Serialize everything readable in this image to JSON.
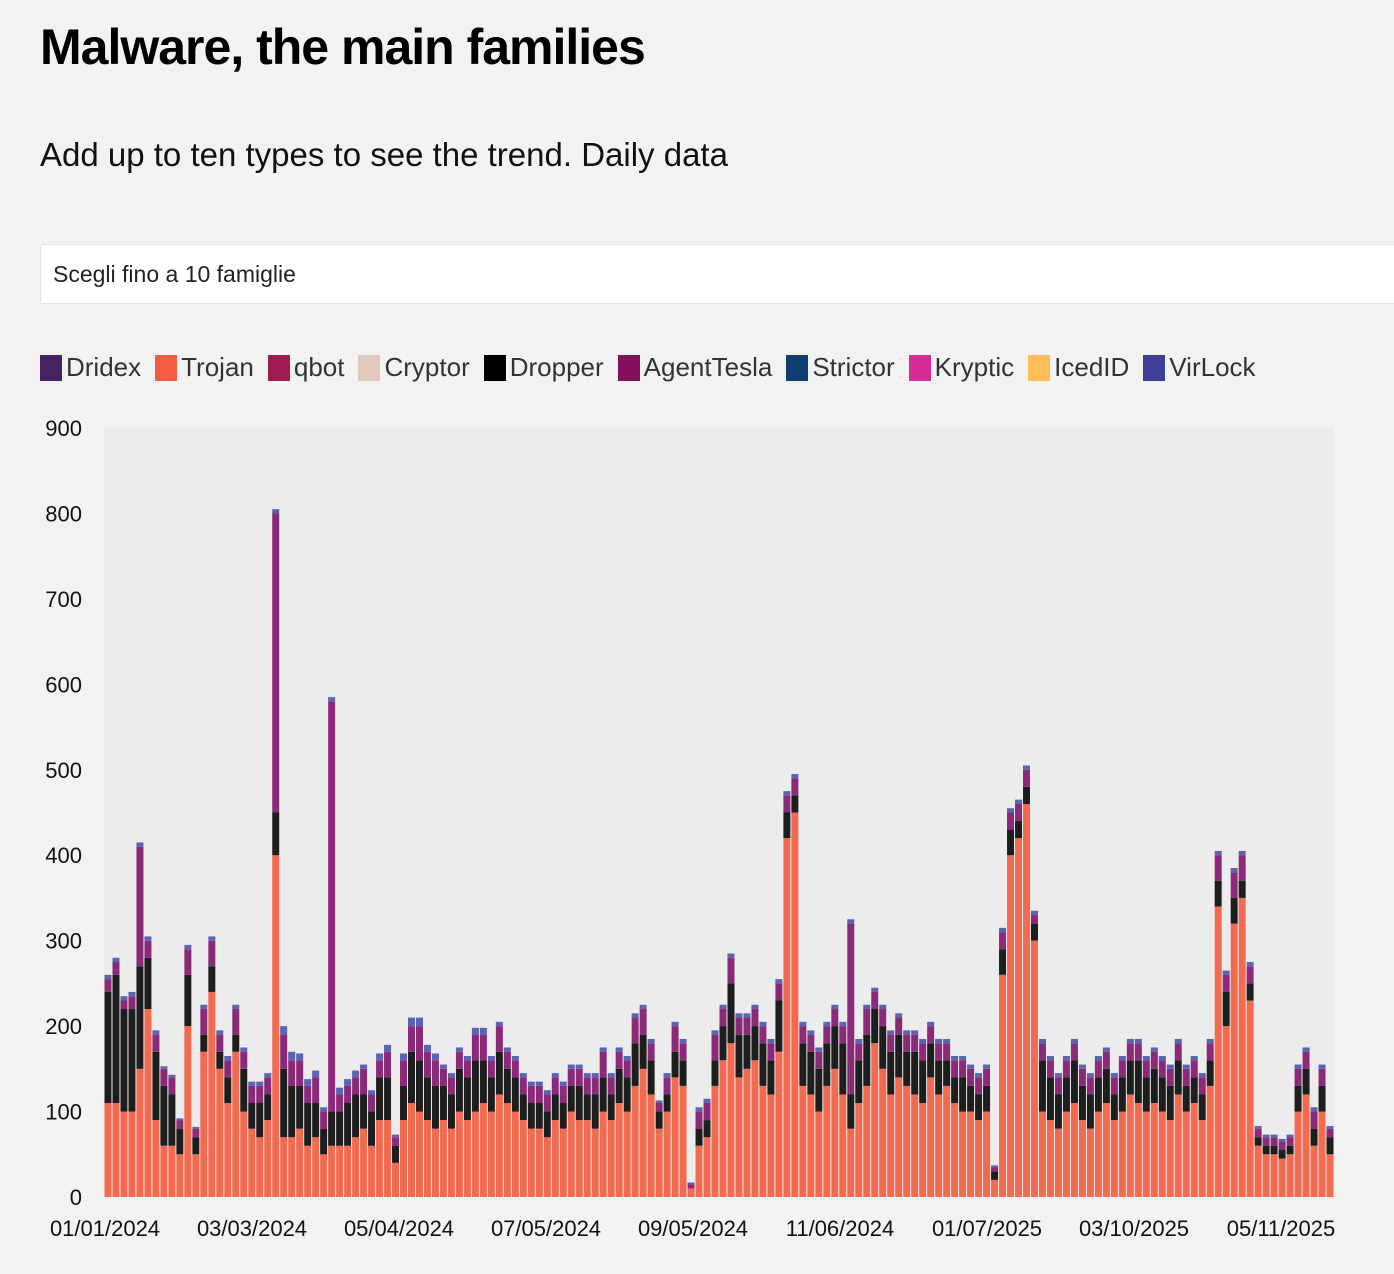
{
  "header": {
    "title": "Malware, the main families",
    "subtitle": "Add up to ten types to see the trend. Daily data"
  },
  "selector": {
    "placeholder": "Scegli fino a 10 famiglie"
  },
  "legend": [
    {
      "name": "Dridex",
      "color": "#45245f"
    },
    {
      "name": "Trojan",
      "color": "#f45d44"
    },
    {
      "name": "qbot",
      "color": "#9e1c50"
    },
    {
      "name": "Cryptor",
      "color": "#e0c8bd"
    },
    {
      "name": "Dropper",
      "color": "#000000"
    },
    {
      "name": "AgentTesla",
      "color": "#82105e"
    },
    {
      "name": "Strictor",
      "color": "#0e3f6e"
    },
    {
      "name": "Kryptic",
      "color": "#d42a93"
    },
    {
      "name": "IcedID",
      "color": "#fdbd57"
    },
    {
      "name": "VirLock",
      "color": "#3f3f98"
    }
  ],
  "chart_data": {
    "type": "bar",
    "stacked": true,
    "title": "",
    "xlabel": "",
    "ylabel": "",
    "ylim": [
      0,
      900
    ],
    "yticks": [
      0,
      100,
      200,
      300,
      400,
      500,
      600,
      700,
      800,
      900
    ],
    "xticks": [
      "01/01/2024",
      "03/03/2024",
      "05/04/2024",
      "07/05/2024",
      "09/05/2024",
      "11/06/2024",
      "01/07/2025",
      "03/10/2025",
      "05/11/2025"
    ],
    "grid": false,
    "legend_position": "top-left",
    "series": [
      {
        "name": "Trojan",
        "color": "#f26b50",
        "values": [
          110,
          110,
          100,
          100,
          150,
          220,
          90,
          60,
          60,
          50,
          200,
          50,
          170,
          240,
          150,
          110,
          170,
          100,
          80,
          70,
          90,
          400,
          70,
          70,
          80,
          60,
          70,
          50,
          60,
          60,
          60,
          70,
          80,
          60,
          90,
          90,
          40,
          90,
          110,
          100,
          90,
          80,
          90,
          80,
          100,
          90,
          100,
          110,
          100,
          120,
          110,
          100,
          90,
          80,
          80,
          70,
          90,
          80,
          100,
          90,
          90,
          80,
          100,
          90,
          110,
          100,
          130,
          150,
          120,
          80,
          100,
          140,
          130,
          10,
          60,
          70,
          130,
          160,
          180,
          140,
          150,
          160,
          130,
          120,
          170,
          420,
          450,
          130,
          120,
          100,
          130,
          150,
          120,
          80,
          110,
          130,
          180,
          150,
          120,
          140,
          130,
          120,
          110,
          140,
          120,
          130,
          110,
          100,
          100,
          90,
          100,
          20,
          260,
          400,
          420,
          460,
          300,
          100,
          90,
          80,
          100,
          110,
          90,
          80,
          100,
          110,
          90,
          100,
          120,
          110,
          100,
          110,
          100,
          90,
          120,
          100,
          110,
          90,
          130,
          340,
          200,
          320,
          350,
          230,
          60,
          50,
          50,
          45,
          50,
          100,
          120,
          60,
          100,
          50
        ]
      },
      {
        "name": "Dropper",
        "color": "#1e1e1e",
        "values": [
          130,
          150,
          120,
          120,
          120,
          60,
          80,
          70,
          60,
          30,
          60,
          20,
          20,
          30,
          20,
          30,
          20,
          50,
          30,
          40,
          30,
          50,
          80,
          60,
          50,
          50,
          40,
          30,
          40,
          40,
          50,
          50,
          40,
          40,
          50,
          50,
          20,
          40,
          60,
          60,
          50,
          50,
          40,
          40,
          50,
          50,
          60,
          50,
          40,
          50,
          40,
          40,
          30,
          30,
          30,
          30,
          30,
          30,
          30,
          40,
          30,
          40,
          40,
          30,
          40,
          40,
          50,
          40,
          40,
          20,
          20,
          30,
          30,
          0,
          20,
          20,
          30,
          40,
          70,
          50,
          40,
          40,
          50,
          40,
          60,
          30,
          20,
          50,
          50,
          50,
          50,
          50,
          60,
          40,
          50,
          60,
          40,
          50,
          50,
          50,
          40,
          50,
          50,
          40,
          40,
          30,
          30,
          40,
          30,
          30,
          30,
          10,
          30,
          30,
          20,
          20,
          20,
          60,
          50,
          40,
          40,
          50,
          40,
          40,
          40,
          40,
          30,
          40,
          40,
          50,
          40,
          40,
          40,
          40,
          40,
          30,
          30,
          30,
          30,
          30,
          40,
          30,
          20,
          20,
          10,
          10,
          10,
          10,
          10,
          30,
          30,
          20,
          30,
          20
        ]
      },
      {
        "name": "AgentTesla",
        "color": "#8b2a78",
        "values": [
          15,
          15,
          10,
          15,
          140,
          20,
          20,
          20,
          20,
          10,
          30,
          10,
          30,
          30,
          20,
          20,
          30,
          20,
          20,
          20,
          20,
          350,
          40,
          30,
          30,
          20,
          30,
          20,
          480,
          20,
          20,
          20,
          30,
          20,
          20,
          30,
          10,
          30,
          30,
          40,
          30,
          30,
          20,
          20,
          20,
          20,
          30,
          30,
          20,
          30,
          20,
          20,
          20,
          20,
          20,
          20,
          20,
          20,
          20,
          20,
          20,
          20,
          30,
          20,
          20,
          20,
          30,
          30,
          20,
          10,
          20,
          30,
          20,
          5,
          20,
          20,
          30,
          20,
          30,
          20,
          20,
          20,
          20,
          20,
          20,
          20,
          20,
          20,
          20,
          20,
          20,
          20,
          20,
          200,
          20,
          30,
          20,
          20,
          20,
          20,
          20,
          20,
          20,
          20,
          20,
          20,
          20,
          20,
          20,
          20,
          20,
          5,
          20,
          20,
          20,
          20,
          10,
          20,
          20,
          20,
          20,
          20,
          20,
          20,
          20,
          20,
          20,
          20,
          20,
          20,
          20,
          20,
          20,
          20,
          20,
          20,
          20,
          20,
          20,
          30,
          20,
          30,
          30,
          20,
          10,
          10,
          10,
          10,
          10,
          20,
          20,
          20,
          20,
          10
        ]
      },
      {
        "name": "VirLock",
        "color": "#5a64b0",
        "values": [
          5,
          5,
          5,
          5,
          5,
          5,
          5,
          3,
          3,
          2,
          5,
          2,
          5,
          5,
          5,
          5,
          5,
          5,
          5,
          5,
          5,
          5,
          10,
          10,
          8,
          8,
          8,
          5,
          5,
          8,
          8,
          8,
          5,
          5,
          8,
          8,
          3,
          8,
          10,
          10,
          8,
          8,
          5,
          5,
          5,
          5,
          8,
          8,
          5,
          5,
          5,
          5,
          5,
          5,
          5,
          5,
          5,
          5,
          5,
          5,
          5,
          5,
          5,
          5,
          5,
          5,
          5,
          5,
          5,
          3,
          5,
          5,
          5,
          2,
          5,
          5,
          5,
          5,
          5,
          5,
          5,
          5,
          5,
          5,
          5,
          5,
          5,
          5,
          5,
          5,
          5,
          5,
          5,
          5,
          5,
          5,
          5,
          5,
          5,
          5,
          5,
          5,
          5,
          5,
          5,
          5,
          5,
          5,
          5,
          5,
          5,
          2,
          5,
          5,
          5,
          5,
          5,
          5,
          5,
          5,
          5,
          5,
          5,
          5,
          5,
          5,
          5,
          5,
          5,
          5,
          5,
          5,
          5,
          5,
          5,
          5,
          5,
          5,
          5,
          5,
          5,
          5,
          5,
          5,
          3,
          3,
          3,
          3,
          3,
          5,
          5,
          5,
          5,
          3
        ]
      }
    ]
  }
}
